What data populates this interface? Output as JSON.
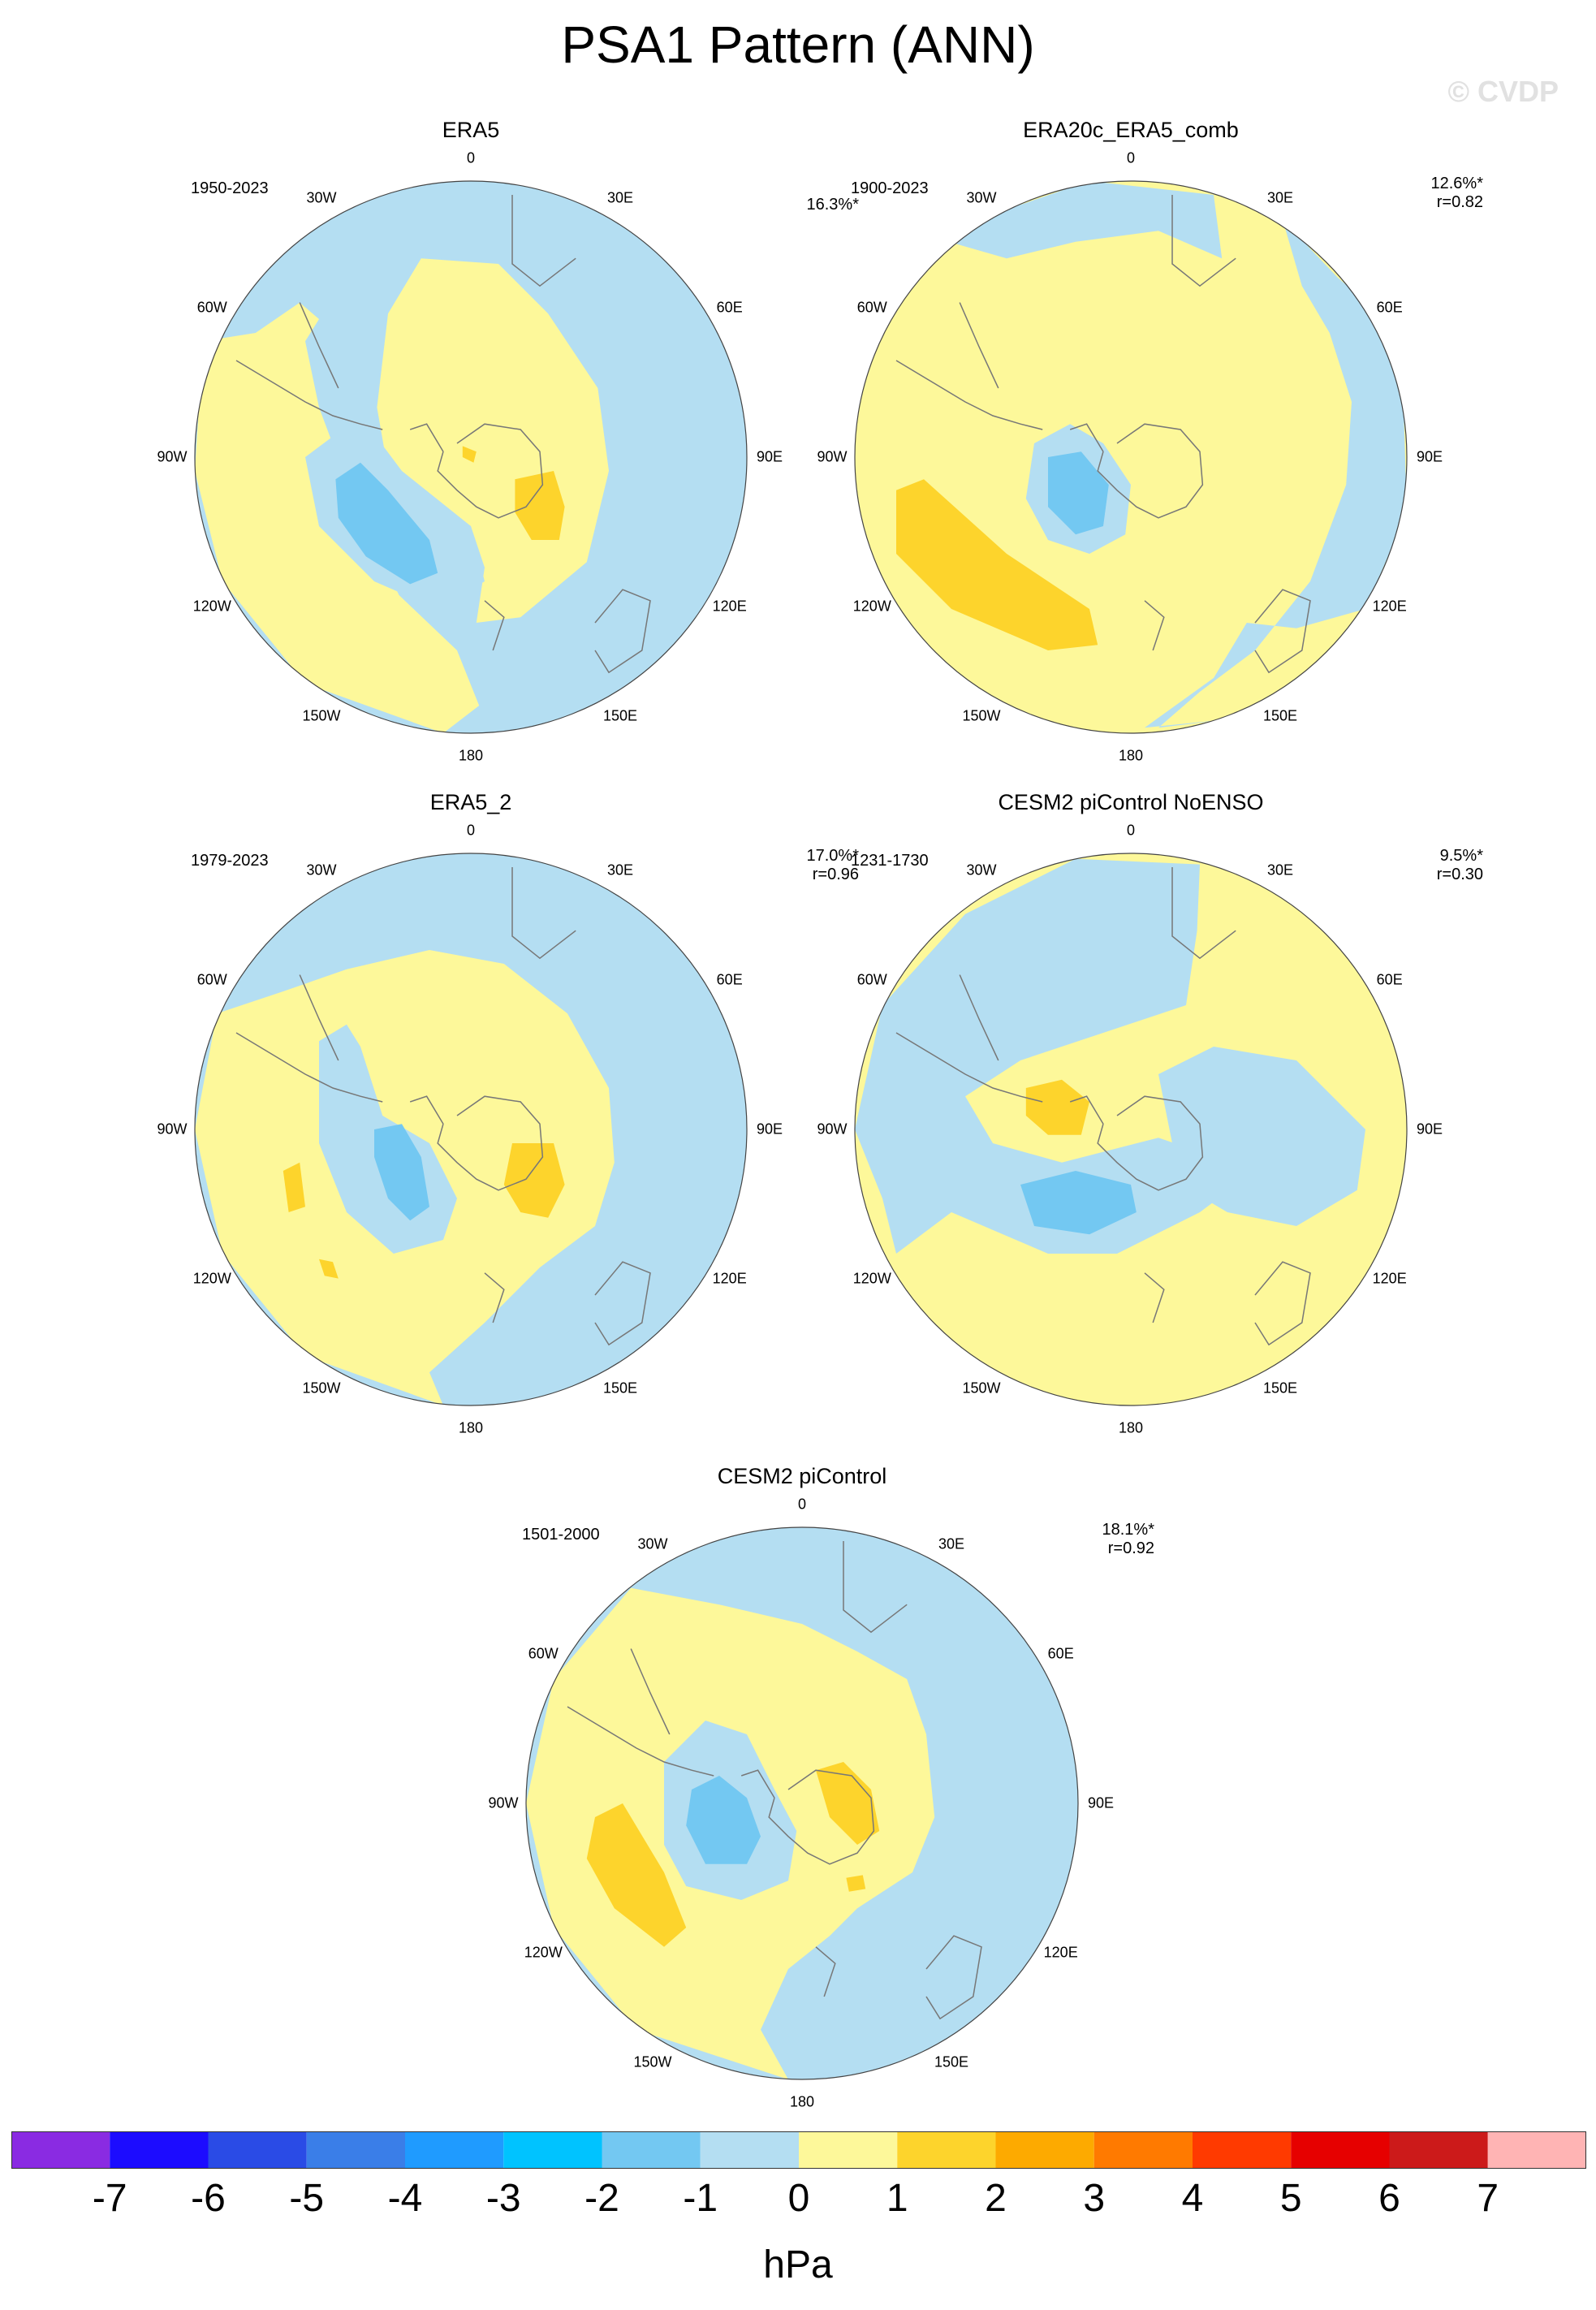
{
  "title": "PSA1 Pattern (ANN)",
  "copyright": "© CVDP",
  "lon_labels": [
    "0",
    "30E",
    "60E",
    "90E",
    "120E",
    "150E",
    "180",
    "150W",
    "120W",
    "90W",
    "60W",
    "30W"
  ],
  "panels": [
    {
      "name": "ERA5",
      "period": "1950-2023",
      "variance": "16.3%*",
      "corr": ""
    },
    {
      "name": "ERA20c_ERA5_comb",
      "period": "1900-2023",
      "variance": "12.6%*",
      "corr": "r=0.82"
    },
    {
      "name": "ERA5_2",
      "period": "1979-2023",
      "variance": "17.0%*",
      "corr": "r=0.96"
    },
    {
      "name": "CESM2 piControl NoENSO",
      "period": "1231-1730",
      "variance": "9.5%*",
      "corr": "r=0.30"
    },
    {
      "name": "CESM2 piControl",
      "period": "1501-2000",
      "variance": "18.1%*",
      "corr": "r=0.92"
    }
  ],
  "colorbar": {
    "units": "hPa",
    "tick_labels": [
      "-7",
      "-6",
      "-5",
      "-4",
      "-3",
      "-2",
      "-1",
      "0",
      "1",
      "2",
      "3",
      "4",
      "5",
      "6",
      "7"
    ],
    "colors": [
      "#8a2be2",
      "#1c0cff",
      "#2a4be6",
      "#3a7ee8",
      "#1f9bff",
      "#00c3ff",
      "#73c8f2",
      "#b4def2",
      "#fdf89a",
      "#fdd42c",
      "#fdaa00",
      "#ff7a00",
      "#ff3a00",
      "#e60000",
      "#cc1a1a",
      "#ffb4b4"
    ]
  }
}
